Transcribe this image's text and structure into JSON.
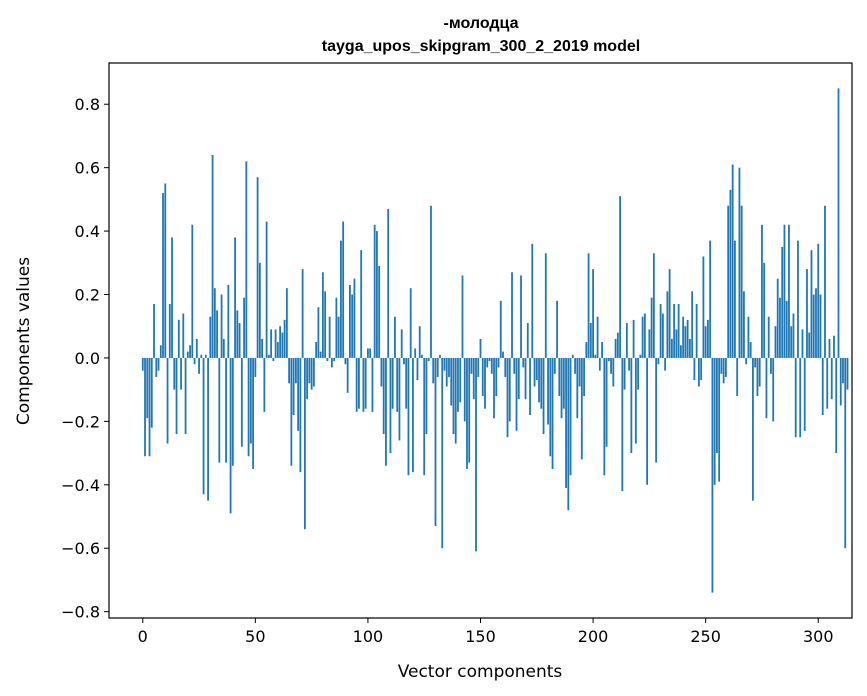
{
  "chart_data": {
    "type": "bar",
    "title_line1": "-молодца",
    "title_line2": "tayga_upos_skipgram_300_2_2019 model",
    "xlabel": "Vector components",
    "ylabel": "Components values",
    "xlim": [
      -15,
      315
    ],
    "ylim": [
      -0.82,
      0.93
    ],
    "xticks": [
      0,
      50,
      100,
      150,
      200,
      250,
      300
    ],
    "xtick_labels": [
      "0",
      "50",
      "100",
      "150",
      "200",
      "250",
      "300"
    ],
    "yticks": [
      -0.8,
      -0.6,
      -0.4,
      -0.2,
      0.0,
      0.2,
      0.4,
      0.6,
      0.8
    ],
    "ytick_labels": [
      "−0.8",
      "−0.6",
      "−0.4",
      "−0.2",
      "0.0",
      "0.2",
      "0.4",
      "0.6",
      "0.8"
    ],
    "bar_color": "#1f77b4",
    "values": [
      -0.04,
      -0.31,
      -0.19,
      -0.31,
      -0.22,
      0.17,
      -0.06,
      -0.04,
      0.04,
      0.52,
      0.55,
      -0.27,
      0.17,
      0.38,
      -0.1,
      -0.24,
      0.12,
      -0.1,
      0.14,
      -0.24,
      0.02,
      0.04,
      0.42,
      -0.02,
      0.06,
      -0.05,
      0.01,
      -0.43,
      0.01,
      -0.45,
      0.13,
      0.64,
      0.22,
      0.15,
      -0.33,
      0.2,
      0.06,
      -0.33,
      0.23,
      -0.49,
      -0.34,
      0.38,
      0.15,
      0.11,
      -0.28,
      0.19,
      0.62,
      -0.31,
      -0.27,
      -0.35,
      -0.06,
      0.57,
      0.3,
      0.06,
      -0.17,
      0.43,
      0.01,
      0.09,
      -0.01,
      0.09,
      0.05,
      0.1,
      0.08,
      0.12,
      0.22,
      -0.08,
      -0.34,
      -0.18,
      -0.08,
      -0.23,
      -0.36,
      0.28,
      -0.54,
      -0.13,
      -0.08,
      -0.1,
      -0.09,
      0.05,
      0.16,
      0.02,
      0.27,
      0.21,
      -0.01,
      0.13,
      -0.03,
      -0.01,
      0.19,
      0.13,
      0.37,
      0.43,
      -0.02,
      -0.11,
      0.23,
      0.2,
      0.25,
      -0.17,
      -0.16,
      0.34,
      -0.17,
      -0.16,
      0.03,
      0.03,
      -0.17,
      0.42,
      0.4,
      0.29,
      -0.09,
      -0.24,
      -0.34,
      0.47,
      -0.3,
      -0.16,
      0.13,
      -0.17,
      -0.26,
      0.09,
      -0.02,
      -0.16,
      -0.37,
      0.22,
      -0.36,
      0.03,
      -0.07,
      0.1,
      0.01,
      -0.37,
      -0.24,
      -0.01,
      0.48,
      -0.08,
      -0.53,
      -0.06,
      0.01,
      -0.6,
      -0.04,
      -0.09,
      -0.06,
      -0.15,
      -0.24,
      -0.27,
      -0.17,
      -0.14,
      0.26,
      -0.2,
      -0.35,
      -0.33,
      -0.05,
      -0.13,
      -0.61,
      -0.06,
      0.06,
      -0.12,
      -0.16,
      -0.03,
      -0.01,
      -0.05,
      -0.19,
      -0.12,
      -0.03,
      0.18,
      0.02,
      -0.06,
      -0.25,
      -0.2,
      0.27,
      -0.05,
      -0.23,
      -0.13,
      0.26,
      -0.03,
      -0.13,
      0.11,
      -0.18,
      0.36,
      -0.09,
      -0.07,
      -0.14,
      -0.16,
      -0.24,
      0.33,
      -0.21,
      -0.31,
      -0.35,
      -0.05,
      0.18,
      -0.12,
      -0.19,
      -0.16,
      -0.41,
      -0.48,
      -0.37,
      0.01,
      -0.05,
      -0.19,
      -0.09,
      -0.32,
      -0.12,
      0.05,
      0.33,
      0.11,
      0.28,
      0.01,
      0.13,
      -0.04,
      0.05,
      -0.37,
      -0.28,
      -0.01,
      -0.05,
      -0.09,
      0.06,
      0.08,
      0.51,
      -0.42,
      -0.1,
      0.11,
      -0.04,
      -0.3,
      0.12,
      -0.27,
      -0.1,
      0.01,
      0.13,
      0.14,
      -0.4,
      0.09,
      0.19,
      0.33,
      -0.33,
      -0.02,
      0.17,
      0.14,
      -0.04,
      0.21,
      0.28,
      0.06,
      0.17,
      0.09,
      0.17,
      0.04,
      0.13,
      0.1,
      0.12,
      0.06,
      0.21,
      -0.07,
      0.17,
      -0.09,
      -0.07,
      0.32,
      0.1,
      0.12,
      0.37,
      -0.74,
      -0.4,
      -0.3,
      -0.39,
      -0.05,
      -0.08,
      -0.06,
      0.48,
      0.53,
      0.61,
      0.37,
      -0.12,
      0.6,
      0.48,
      0.21,
      -0.02,
      0.13,
      0.05,
      -0.45,
      -0.03,
      -0.12,
      -0.09,
      0.42,
      0.3,
      -0.19,
      0.13,
      -0.05,
      -0.2,
      0.1,
      0.25,
      0.19,
      0.35,
      0.42,
      0.18,
      0.42,
      0.1,
      0.14,
      -0.25,
      0.37,
      -0.25,
      0.09,
      -0.23,
      0.28,
      0.08,
      0.34,
      0.2,
      0.22,
      0.36,
      0.2,
      -0.18,
      0.48,
      -0.16,
      0.06,
      -0.13,
      0.07,
      -0.3,
      0.85,
      -0.15,
      -0.08,
      -0.6,
      -0.1
    ]
  }
}
